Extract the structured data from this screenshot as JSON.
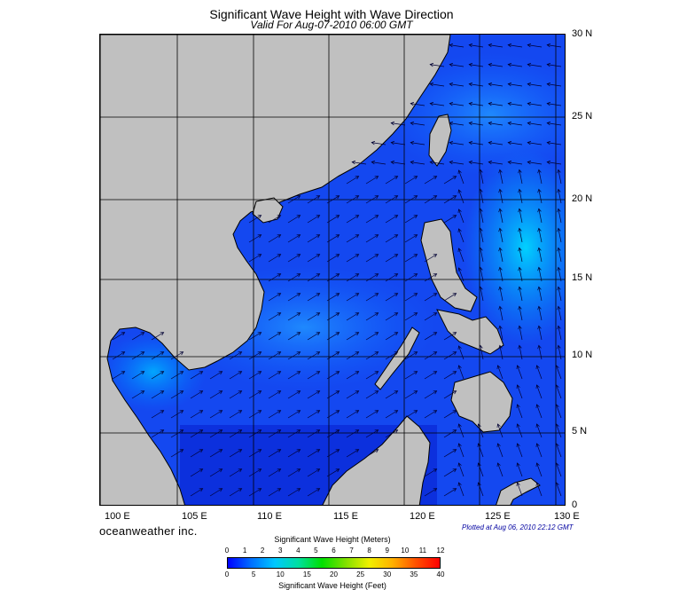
{
  "title": "Significant Wave Height with Wave Direction",
  "subtitle": "Valid For Aug-07-2010 06:00 GMT",
  "map": {
    "lon_range": [
      100,
      130
    ],
    "lat_range": [
      0,
      30
    ],
    "lon_labels": [
      "100 E",
      "105 E",
      "110 E",
      "115 E",
      "120 E",
      "125 E",
      "130 E"
    ],
    "lat_labels": [
      "30 N",
      "25 N",
      "20 N",
      "15 N",
      "10 N",
      "5 N",
      "0"
    ],
    "land_color": "#c0c0c0",
    "ocean_color": "#1e50ff",
    "grid": true
  },
  "brand": "oceanweather inc.",
  "plotted": "Plotted at Aug 06, 2010 22:12 GMT",
  "colorbar": {
    "meters_label": "Significant Wave Height (Meters)",
    "feet_label": "Significant Wave Height (Feet)",
    "meters_ticks": [
      "0",
      "1",
      "2",
      "3",
      "4",
      "5",
      "6",
      "7",
      "8",
      "9",
      "10",
      "11",
      "12"
    ],
    "feet_ticks": [
      "0",
      "5",
      "10",
      "15",
      "20",
      "25",
      "30",
      "35",
      "40"
    ],
    "colors": [
      "#0000ff",
      "#0070ff",
      "#00c8ff",
      "#00e0a0",
      "#00e000",
      "#80e000",
      "#f0f000",
      "#ffb000",
      "#ff5000",
      "#ff0000"
    ]
  }
}
